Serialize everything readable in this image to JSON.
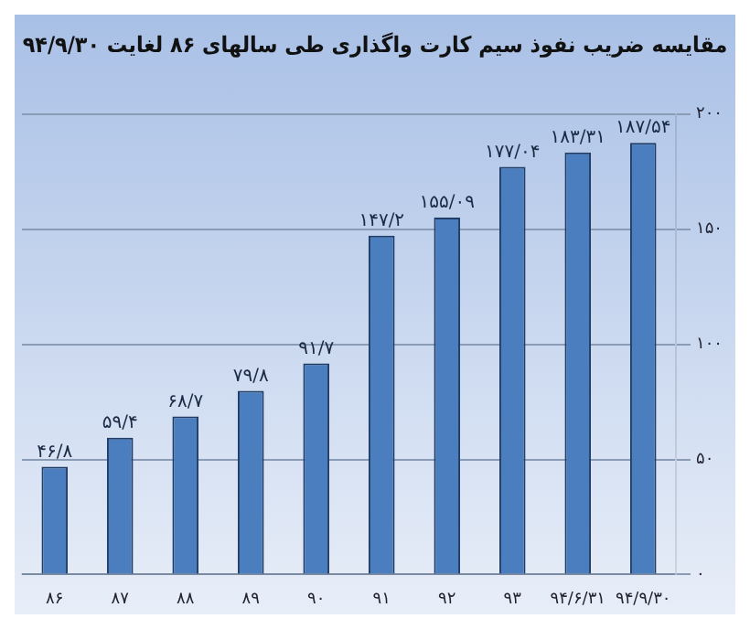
{
  "chart_data": {
    "type": "bar",
    "title": "مقایسه ضریب نفوذ سیم کارت واگذاری طی سالهای ۸۶ لغایت ۹۴/۹/۳۰",
    "categories": [
      "۸۶",
      "۸۷",
      "۸۸",
      "۸۹",
      "۹۰",
      "۹۱",
      "۹۲",
      "۹۳",
      "۹۴/۶/۳۱",
      "۹۴/۹/۳۰"
    ],
    "values": [
      46.8,
      59.4,
      68.7,
      79.8,
      91.7,
      147.2,
      155.09,
      177.04,
      183.31,
      187.54
    ],
    "value_labels": [
      "۴۶/۸",
      "۵۹/۴",
      "۶۸/۷",
      "۷۹/۸",
      "۹۱/۷",
      "۱۴۷/۲",
      "۱۵۵/۰۹",
      "۱۷۷/۰۴",
      "۱۸۳/۳۱",
      "۱۸۷/۵۴"
    ],
    "color": "#4a7ebf",
    "ylim": [
      0,
      200
    ],
    "yticks": [
      {
        "value": 0,
        "label": "۰"
      },
      {
        "value": 50,
        "label": "۵۰"
      },
      {
        "value": 100,
        "label": "۱۰۰"
      },
      {
        "value": 150,
        "label": "۱۵۰"
      },
      {
        "value": 200,
        "label": "۲۰۰"
      }
    ],
    "grid": "y"
  }
}
